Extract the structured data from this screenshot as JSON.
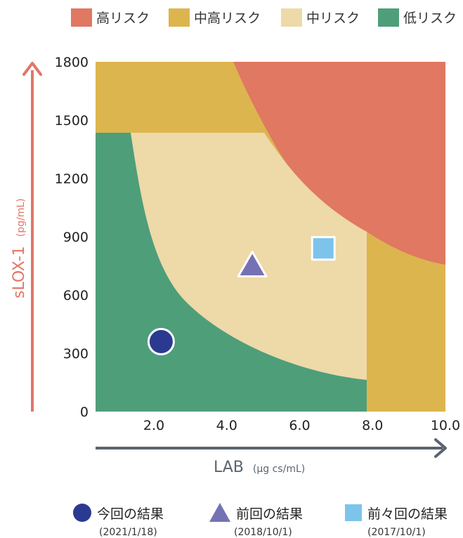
{
  "chart_data": {
    "type": "scatter",
    "xlabel": "LAB",
    "xunit": "(µg cs/mL)",
    "ylabel": "sLOX-1",
    "yunit": "(pg/mL)",
    "xticks": [
      "2.0",
      "4.0",
      "6.0",
      "8.0",
      "10.0"
    ],
    "yticks": [
      "1800",
      "1500",
      "1200",
      "900",
      "600",
      "300",
      "0"
    ],
    "xlim": [
      0.4,
      10.0
    ],
    "ylim": [
      0,
      1800
    ],
    "zones": [
      {
        "name": "高リスク",
        "color": "#e07862"
      },
      {
        "name": "中高リスク",
        "color": "#ddb54e"
      },
      {
        "name": "中リスク",
        "color": "#eed9a8"
      },
      {
        "name": "低リスク",
        "color": "#4e9e7a"
      }
    ],
    "points": [
      {
        "label": "今回の結果",
        "date": "(2021/1/18)",
        "shape": "circle",
        "color": "#2b3a91",
        "x": 2.2,
        "y": 360
      },
      {
        "label": "前回の結果",
        "date": "(2018/10/1)",
        "shape": "triangle",
        "color": "#7572b4",
        "x": 4.7,
        "y": 750
      },
      {
        "label": "前々回の結果",
        "date": "(2017/10/1)",
        "shape": "square",
        "color": "#7cc4ec",
        "x": 6.65,
        "y": 840
      }
    ]
  }
}
